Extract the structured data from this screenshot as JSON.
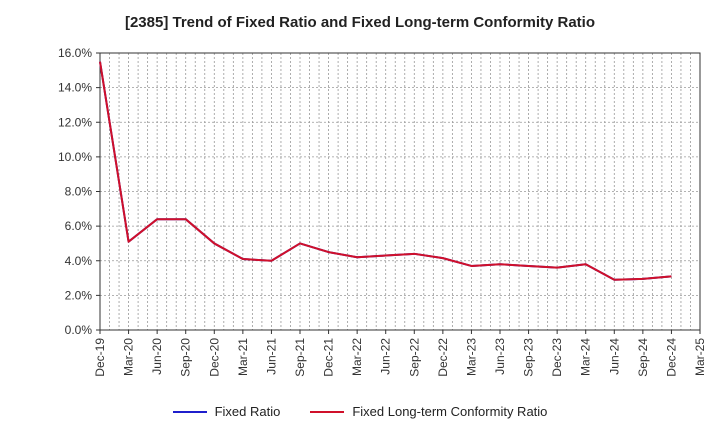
{
  "chart_data": {
    "type": "line",
    "title": "[2385]  Trend of Fixed Ratio and Fixed Long-term Conformity Ratio",
    "xlabel": "",
    "ylabel": "",
    "ylim": [
      0,
      16
    ],
    "y_ticks": [
      "0.0%",
      "2.0%",
      "4.0%",
      "6.0%",
      "8.0%",
      "10.0%",
      "12.0%",
      "14.0%",
      "16.0%"
    ],
    "categories": [
      "Dec-19",
      "Mar-20",
      "Jun-20",
      "Sep-20",
      "Dec-20",
      "Mar-21",
      "Jun-21",
      "Sep-21",
      "Dec-21",
      "Mar-22",
      "Jun-22",
      "Sep-22",
      "Dec-22",
      "Mar-23",
      "Jun-23",
      "Sep-23",
      "Dec-23",
      "Mar-24",
      "Jun-24",
      "Sep-24",
      "Dec-24",
      "Mar-25"
    ],
    "grid": true,
    "legend_position": "bottom",
    "series": [
      {
        "name": "Fixed Ratio",
        "color": "#1f1fcc",
        "values": [
          15.5,
          5.1,
          6.4,
          6.4,
          5.0,
          4.1,
          4.0,
          5.0,
          4.5,
          4.2,
          4.3,
          4.4,
          4.15,
          3.7,
          3.8,
          3.7,
          3.6,
          3.8,
          2.9,
          2.95,
          3.1,
          null
        ]
      },
      {
        "name": "Fixed Long-term Conformity Ratio",
        "color": "#d0102a",
        "values": [
          15.5,
          5.1,
          6.4,
          6.4,
          5.0,
          4.1,
          4.0,
          5.0,
          4.5,
          4.2,
          4.3,
          4.4,
          4.15,
          3.7,
          3.8,
          3.7,
          3.6,
          3.8,
          2.9,
          2.95,
          3.1,
          null
        ]
      }
    ]
  }
}
